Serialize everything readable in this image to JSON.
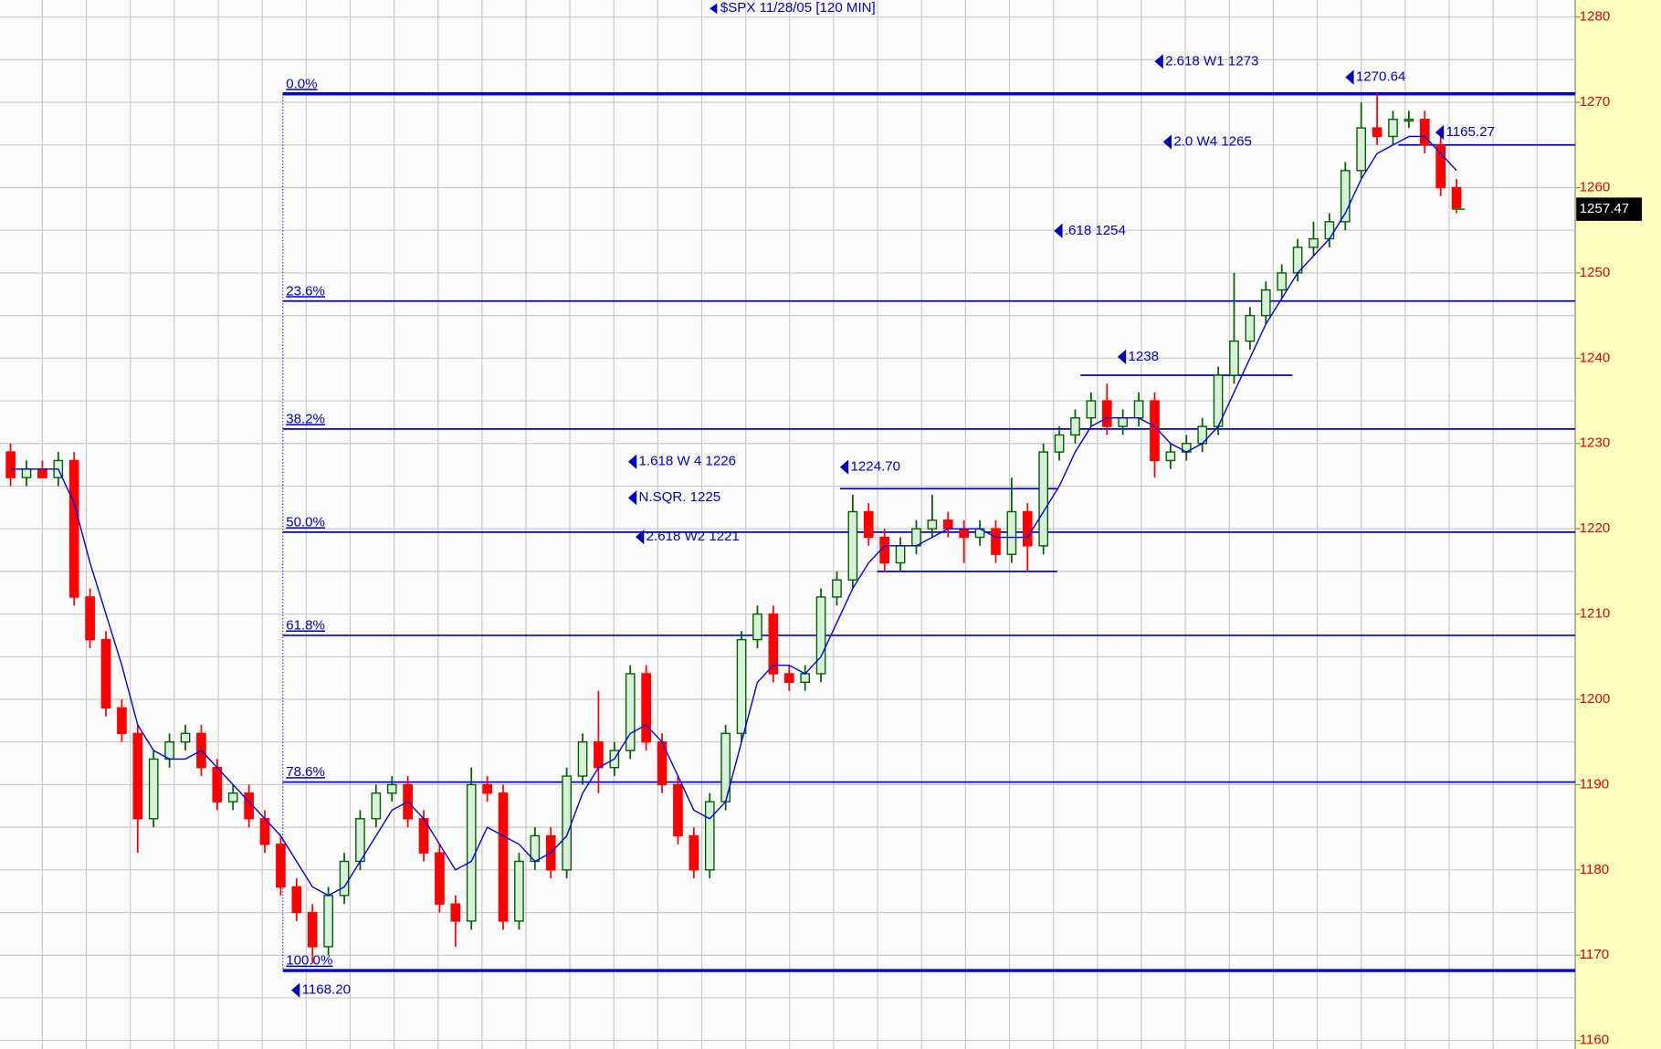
{
  "chart_data": {
    "type": "candlestick",
    "title": "$SPX 11/28/05  [120 MIN]",
    "ylim": [
      1159,
      1282
    ],
    "yticks": [
      1160,
      1170,
      1180,
      1190,
      1200,
      1210,
      1220,
      1230,
      1240,
      1250,
      1260,
      1270,
      1280
    ],
    "grid": true,
    "up_color": "#006000",
    "down_color": "#ff0000",
    "line_color": "#0000e0",
    "open": [
      1229,
      1226,
      1227,
      1226,
      1228,
      1212,
      1207,
      1199,
      1196,
      1186,
      1193,
      1195,
      1196,
      1192,
      1188,
      1189,
      1186,
      1183,
      1178,
      1175,
      1171,
      1177,
      1181,
      1186,
      1189,
      1190,
      1186,
      1182,
      1176,
      1174,
      1190,
      1189,
      1174,
      1181,
      1184,
      1180,
      1191,
      1195,
      1192,
      1194,
      1203,
      1195,
      1190,
      1184,
      1180,
      1188,
      1196,
      1207,
      1210,
      1203,
      1202,
      1203,
      1212,
      1214,
      1222,
      1219,
      1216,
      1218,
      1220,
      1221,
      1220,
      1219,
      1220,
      1217,
      1222,
      1218,
      1229,
      1231,
      1233,
      1235,
      1232,
      1233,
      1235,
      1228,
      1229,
      1230,
      1232,
      1238,
      1242,
      1245,
      1248,
      1250,
      1253,
      1254,
      1256,
      1262,
      1267,
      1266,
      1268,
      1268,
      1265,
      1260
    ],
    "high": [
      1230,
      1228,
      1228,
      1229,
      1229,
      1213,
      1208,
      1200,
      1197,
      1194,
      1196,
      1197,
      1197,
      1193,
      1190,
      1190,
      1187,
      1184,
      1179,
      1176,
      1178,
      1182,
      1187,
      1190,
      1191,
      1191,
      1187,
      1183,
      1177,
      1192,
      1191,
      1190,
      1182,
      1185,
      1185,
      1192,
      1196,
      1201,
      1195,
      1204,
      1204,
      1196,
      1191,
      1185,
      1189,
      1197,
      1208,
      1211,
      1211,
      1204,
      1204,
      1213,
      1215,
      1224,
      1223,
      1220,
      1219,
      1221,
      1224,
      1222,
      1221,
      1221,
      1221,
      1226,
      1223,
      1230,
      1232,
      1234,
      1236,
      1237,
      1234,
      1236,
      1236,
      1230,
      1231,
      1233,
      1239,
      1250,
      1246,
      1249,
      1251,
      1254,
      1256,
      1257,
      1263,
      1270,
      1271,
      1269,
      1269,
      1269,
      1266,
      1261
    ],
    "low": [
      1225,
      1225,
      1226,
      1225,
      1211,
      1206,
      1198,
      1195,
      1182,
      1185,
      1192,
      1194,
      1191,
      1187,
      1187,
      1185,
      1182,
      1177,
      1174,
      1169,
      1170,
      1176,
      1180,
      1185,
      1188,
      1185,
      1181,
      1175,
      1171,
      1173,
      1188,
      1173,
      1173,
      1180,
      1179,
      1179,
      1190,
      1189,
      1191,
      1193,
      1194,
      1189,
      1183,
      1179,
      1179,
      1187,
      1195,
      1206,
      1202,
      1201,
      1201,
      1202,
      1211,
      1213,
      1218,
      1215,
      1215,
      1217,
      1219,
      1219,
      1216,
      1218,
      1216,
      1216,
      1215,
      1217,
      1228,
      1230,
      1232,
      1231,
      1231,
      1232,
      1226,
      1227,
      1228,
      1229,
      1231,
      1237,
      1241,
      1244,
      1247,
      1249,
      1252,
      1253,
      1255,
      1261,
      1265,
      1265,
      1267,
      1264,
      1259,
      1257
    ],
    "close": [
      1226,
      1227,
      1226,
      1228,
      1212,
      1207,
      1199,
      1196,
      1186,
      1193,
      1195,
      1196,
      1192,
      1188,
      1189,
      1186,
      1183,
      1178,
      1175,
      1171,
      1177,
      1181,
      1186,
      1189,
      1190,
      1186,
      1182,
      1176,
      1174,
      1190,
      1189,
      1174,
      1181,
      1184,
      1180,
      1191,
      1195,
      1192,
      1194,
      1203,
      1195,
      1190,
      1184,
      1180,
      1188,
      1196,
      1207,
      1210,
      1203,
      1202,
      1203,
      1212,
      1214,
      1222,
      1219,
      1216,
      1218,
      1220,
      1221,
      1220,
      1219,
      1220,
      1217,
      1222,
      1218,
      1229,
      1231,
      1233,
      1235,
      1232,
      1233,
      1235,
      1228,
      1229,
      1230,
      1232,
      1238,
      1242,
      1245,
      1248,
      1250,
      1253,
      1254,
      1256,
      1262,
      1267,
      1266,
      1268,
      1268,
      1265,
      1260,
      1257.5
    ],
    "moving_average": [
      1227,
      1227,
      1227,
      1227,
      1223,
      1216,
      1210,
      1204,
      1197,
      1194,
      1193,
      1193,
      1194,
      1192,
      1190,
      1188,
      1186,
      1184,
      1181,
      1178,
      1177,
      1178,
      1181,
      1184,
      1187,
      1188,
      1186,
      1183,
      1180,
      1181,
      1185,
      1184,
      1183,
      1181,
      1182,
      1184,
      1189,
      1192,
      1193,
      1196,
      1197,
      1195,
      1191,
      1187,
      1186,
      1188,
      1195,
      1202,
      1204,
      1204,
      1203,
      1205,
      1209,
      1213,
      1216,
      1218,
      1218,
      1218,
      1219,
      1220,
      1220,
      1220,
      1219,
      1219,
      1219,
      1222,
      1225,
      1229,
      1232,
      1233,
      1233,
      1233,
      1232,
      1230,
      1229,
      1230,
      1232,
      1236,
      1240,
      1244,
      1247,
      1250,
      1252,
      1254,
      1257,
      1261,
      1264,
      1265,
      1266,
      1266,
      1264,
      1262
    ],
    "fib_levels": [
      {
        "value": 1271,
        "label": "0.0%"
      },
      {
        "value": 1246.7,
        "label": "23.6%"
      },
      {
        "value": 1231.7,
        "label": "38.2%"
      },
      {
        "value": 1219.6,
        "label": "50.0%"
      },
      {
        "value": 1207.5,
        "label": "61.8%"
      },
      {
        "value": 1190.3,
        "label": "78.6%"
      },
      {
        "value": 1168.2,
        "label": "100.0%"
      }
    ],
    "lines": [
      1265,
      1238,
      1224.7,
      1215
    ],
    "annotations": [
      "2.618 W1 1273",
      "1270.64",
      "2.0 W4 1265",
      "1165.27",
      ".618 1254",
      "1238",
      "1.618 W 4 1226",
      "N.SQR. 1225",
      "2.618 W2 1221",
      "1224.70",
      "1168.20"
    ],
    "last_price": 1257.47
  }
}
